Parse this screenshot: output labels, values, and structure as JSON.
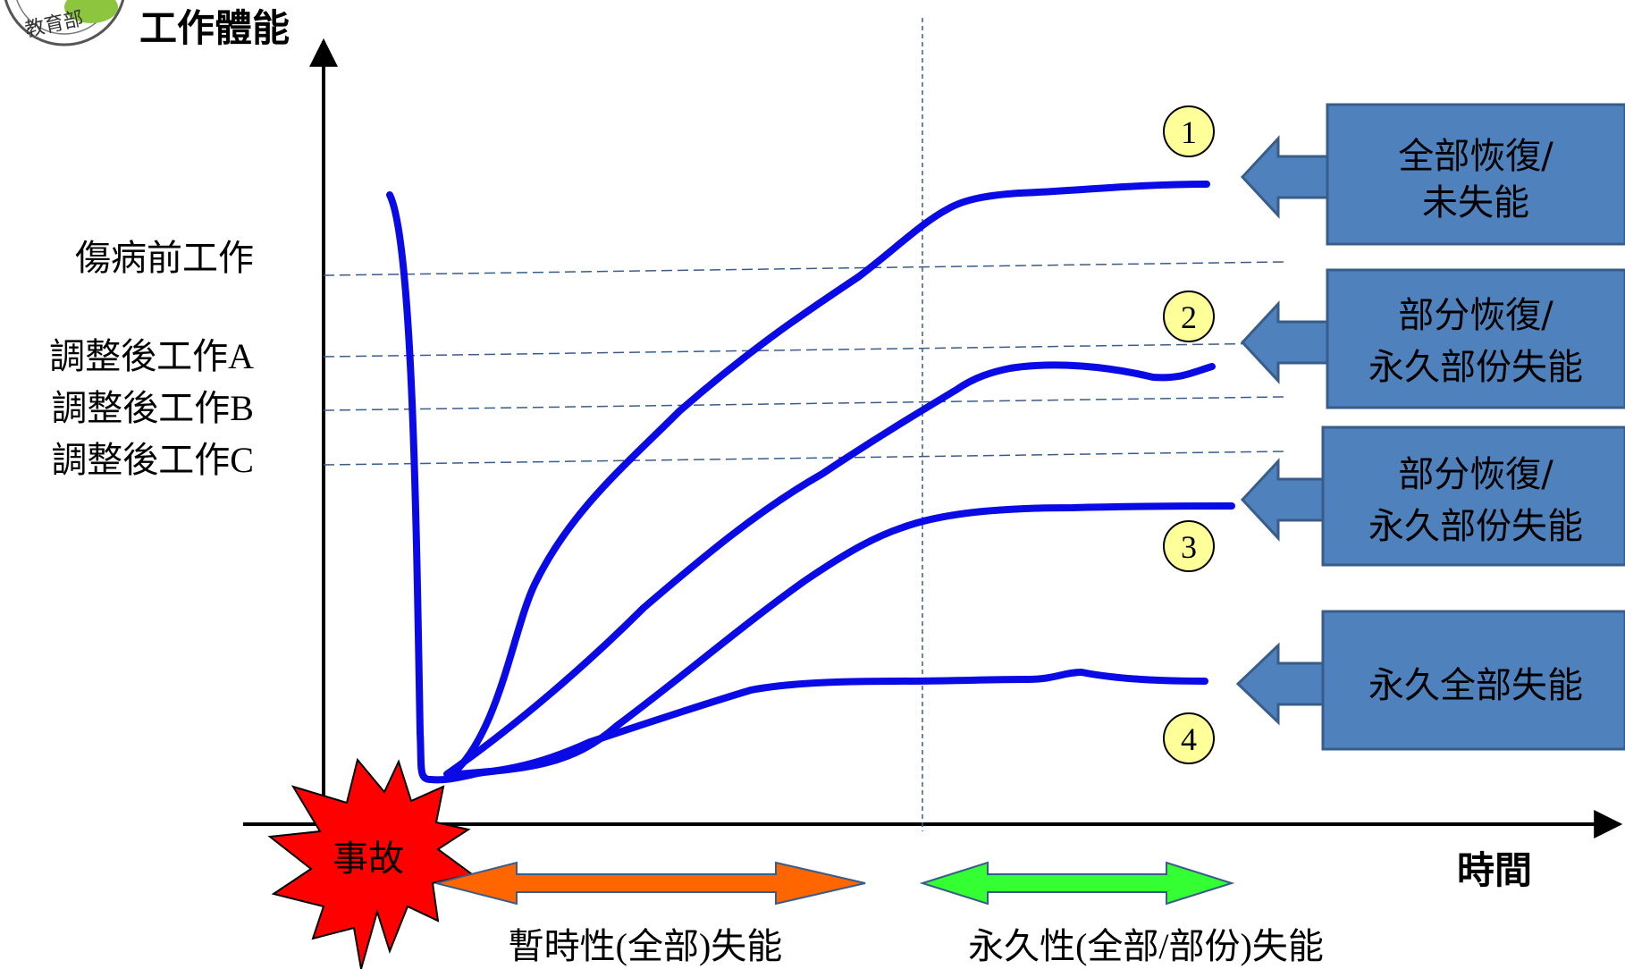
{
  "logo": {
    "text": "教育部"
  },
  "y_axis_label": "工作體能",
  "x_axis_label": "時間",
  "levels": [
    {
      "label": "傷病前工作"
    },
    {
      "label": "調整後工作A"
    },
    {
      "label": "調整後工作B"
    },
    {
      "label": "調整後工作C"
    }
  ],
  "curves": [
    {
      "number": "1"
    },
    {
      "number": "2"
    },
    {
      "number": "3"
    },
    {
      "number": "4"
    }
  ],
  "outcomes": [
    {
      "line1": "全部恢復/",
      "line2": "未失能"
    },
    {
      "line1": "部分恢復/",
      "line2": "永久部份失能"
    },
    {
      "line1": "部分恢復/",
      "line2": "永久部份失能"
    },
    {
      "line1": "永久全部失能",
      "line2": ""
    }
  ],
  "event_label": "事故",
  "phases": {
    "temporary": "暫時性(全部)失能",
    "permanent": "永久性(全部/部份)失能"
  },
  "colors": {
    "curve": "#0a0ae6",
    "box_fill": "#4f81bd",
    "box_stroke": "#385d8a",
    "badge_fill": "#ffff99",
    "burst": "#ff0000",
    "arrow_temporary": "#ff6600",
    "arrow_permanent": "#33ff33",
    "guide_line": "#385d8a"
  }
}
